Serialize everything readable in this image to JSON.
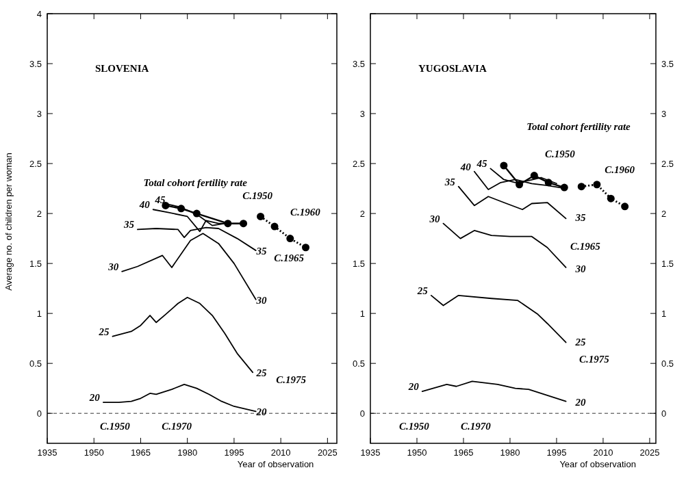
{
  "chart_data": [
    {
      "type": "line",
      "title": "SLOVENIA",
      "xlabel": "Year of observation",
      "ylabel": "Average no. of children per woman",
      "xlim": [
        1935,
        2028
      ],
      "xticks": [
        1935,
        1950,
        1965,
        1980,
        1995,
        2010,
        2025
      ],
      "ylim": [
        -0.3,
        4
      ],
      "yticks": [
        0,
        0.5,
        1,
        1.5,
        2,
        2.5,
        3,
        3.5,
        4
      ],
      "ref_lines": [
        {
          "axis": "y",
          "value": 0,
          "line_style": "dashed",
          "color": "#000000"
        }
      ],
      "series": [
        {
          "name": "20",
          "color": "#000000",
          "x": [
            1953,
            1958,
            1962,
            1965,
            1968,
            1970,
            1975,
            1979,
            1983,
            1987,
            1991,
            1995,
            2002
          ],
          "values": [
            0.11,
            0.11,
            0.12,
            0.15,
            0.2,
            0.19,
            0.24,
            0.29,
            0.25,
            0.19,
            0.12,
            0.07,
            0.02
          ]
        },
        {
          "name": "25",
          "color": "#000000",
          "x": [
            1956,
            1962,
            1965,
            1968,
            1970,
            1973,
            1977,
            1980,
            1984,
            1988,
            1992,
            1996,
            2001
          ],
          "values": [
            0.77,
            0.82,
            0.88,
            0.98,
            0.91,
            0.99,
            1.1,
            1.16,
            1.1,
            0.98,
            0.8,
            0.6,
            0.41
          ]
        },
        {
          "name": "30",
          "color": "#000000",
          "x": [
            1959,
            1964,
            1972,
            1975,
            1981,
            1985,
            1990,
            1995,
            2002
          ],
          "values": [
            1.42,
            1.47,
            1.58,
            1.46,
            1.73,
            1.8,
            1.7,
            1.5,
            1.14
          ]
        },
        {
          "name": "35",
          "color": "#000000",
          "x": [
            1964,
            1970,
            1977,
            1979,
            1981,
            1986,
            1990,
            1996,
            2002
          ],
          "values": [
            1.84,
            1.85,
            1.84,
            1.76,
            1.83,
            1.86,
            1.85,
            1.75,
            1.63
          ]
        },
        {
          "name": "40",
          "color": "#000000",
          "x": [
            1969,
            1974,
            1980,
            1984,
            1986,
            1990,
            1997
          ],
          "values": [
            2.04,
            2.01,
            1.97,
            1.82,
            1.93,
            1.9,
            1.9
          ]
        },
        {
          "name": "45",
          "color": "#000000",
          "x": [
            1974,
            1977,
            1981,
            1984,
            1988,
            1992
          ],
          "values": [
            2.09,
            2.07,
            2.02,
            1.97,
            1.88,
            1.9
          ]
        },
        {
          "color": "#000000",
          "marker": "circle",
          "line_style": "solid",
          "x": [
            1973,
            1978,
            1983,
            1993,
            1998
          ],
          "values": [
            2.08,
            2.05,
            2.0,
            1.9,
            1.9
          ]
        },
        {
          "color": "#000000",
          "marker": "circle",
          "line_style": "dotted",
          "x": [
            2003.5,
            2008,
            2013,
            2018
          ],
          "values": [
            1.97,
            1.87,
            1.75,
            1.66
          ]
        }
      ],
      "annotations": [
        "Total cohort fertility rate",
        "C.1950",
        "C.1960",
        "C.1965",
        "C.1975",
        "C.1950",
        "C.1970",
        "35",
        "30",
        "25",
        "20"
      ]
    },
    {
      "type": "line",
      "title": "YUGOSLAVIA",
      "xlabel": "Year of observation",
      "xlim": [
        1935,
        2027
      ],
      "xticks": [
        1935,
        1950,
        1965,
        1980,
        1995,
        2010,
        2025
      ],
      "ylim": [
        -0.3,
        4
      ],
      "yticks": [
        0,
        0.5,
        1,
        1.5,
        2,
        2.5,
        3,
        3.5,
        {
          "value": 4,
          "label": null
        }
      ],
      "y2lim": [
        -0.3,
        4
      ],
      "y2ticks": [
        0,
        0.5,
        1,
        1.5,
        2,
        2.5,
        3,
        3.5,
        {
          "value": 4,
          "label": null
        }
      ],
      "ref_lines": [
        {
          "axis": "y",
          "value": 0,
          "line_style": "dashed",
          "color": "#000000"
        }
      ],
      "series": [
        {
          "name": "20",
          "color": "#000000",
          "x": [
            1951.7,
            1959.6,
            1962.7,
            1967.8,
            1976,
            1981.7,
            1986,
            1998
          ],
          "values": [
            0.22,
            0.29,
            0.27,
            0.32,
            0.29,
            0.25,
            0.24,
            0.12
          ]
        },
        {
          "name": "25",
          "color": "#000000",
          "x": [
            1954.6,
            1958.5,
            1963.4,
            1974,
            1982.5,
            1989,
            1992,
            1998
          ],
          "values": [
            1.18,
            1.08,
            1.18,
            1.15,
            1.13,
            0.99,
            0.9,
            0.71
          ]
        },
        {
          "name": "30",
          "color": "#000000",
          "x": [
            1958.5,
            1964,
            1968.5,
            1974,
            1980,
            1987,
            1992,
            1998
          ],
          "values": [
            1.9,
            1.75,
            1.83,
            1.78,
            1.77,
            1.77,
            1.66,
            1.46
          ]
        },
        {
          "name": "35",
          "color": "#000000",
          "x": [
            1963.4,
            1968.5,
            1973,
            1978,
            1984,
            1987,
            1992,
            1998
          ],
          "values": [
            2.27,
            2.08,
            2.17,
            2.11,
            2.04,
            2.1,
            2.11,
            1.95
          ]
        },
        {
          "name": "40",
          "color": "#000000",
          "x": [
            1968.5,
            1973,
            1977,
            1981.7,
            1987,
            1992,
            1998
          ],
          "values": [
            2.42,
            2.24,
            2.31,
            2.34,
            2.3,
            2.28,
            2.25
          ]
        },
        {
          "name": "45",
          "color": "#000000",
          "x": [
            1973.7,
            1978,
            1981.7,
            1986,
            1990,
            1995
          ],
          "values": [
            2.45,
            2.34,
            2.31,
            2.33,
            2.36,
            2.3
          ]
        },
        {
          "color": "#000000",
          "marker": "circle",
          "line_style": "solid",
          "x": [
            1978,
            1983,
            1987.8,
            1992.4,
            1997.5
          ],
          "values": [
            2.48,
            2.29,
            2.38,
            2.31,
            2.26
          ]
        },
        {
          "color": "#000000",
          "marker": "circle",
          "line_style": "dotted",
          "x": [
            2003,
            2008,
            2012.5,
            2017
          ],
          "values": [
            2.27,
            2.29,
            2.15,
            2.07
          ]
        }
      ],
      "annotations": [
        "Total cohort fertility rate",
        "C.1950",
        "C.1960",
        "C.1965",
        "C.1975",
        "C.1950",
        "C.1970",
        "35",
        "30",
        "25",
        "20"
      ]
    }
  ]
}
